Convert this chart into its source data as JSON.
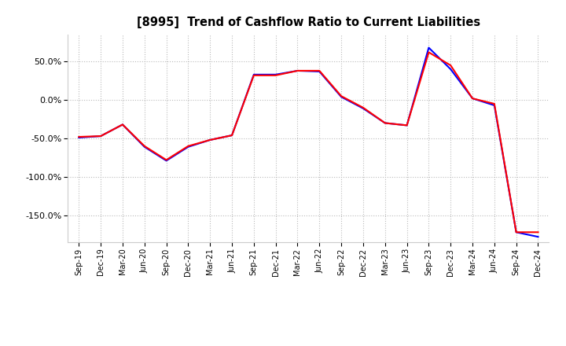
{
  "title": "[8995]  Trend of Cashflow Ratio to Current Liabilities",
  "x_labels": [
    "Sep-19",
    "Dec-19",
    "Mar-20",
    "Jun-20",
    "Sep-20",
    "Dec-20",
    "Mar-21",
    "Jun-21",
    "Sep-21",
    "Dec-21",
    "Mar-22",
    "Jun-22",
    "Sep-22",
    "Dec-22",
    "Mar-23",
    "Jun-23",
    "Sep-23",
    "Dec-23",
    "Mar-24",
    "Jun-24",
    "Sep-24",
    "Dec-24"
  ],
  "operating_cf": [
    -0.48,
    -0.47,
    -0.32,
    -0.6,
    -0.78,
    -0.6,
    -0.52,
    -0.46,
    0.32,
    0.32,
    0.38,
    0.38,
    0.05,
    -0.1,
    -0.3,
    -0.33,
    0.62,
    0.45,
    0.02,
    -0.05,
    -1.72,
    -1.72
  ],
  "free_cf": [
    -0.49,
    -0.47,
    -0.32,
    -0.61,
    -0.79,
    -0.61,
    -0.52,
    -0.46,
    0.33,
    0.33,
    0.38,
    0.37,
    0.04,
    -0.11,
    -0.3,
    -0.33,
    0.68,
    0.4,
    0.02,
    -0.07,
    -1.72,
    -1.78
  ],
  "operating_color": "#ff0000",
  "free_color": "#0000ff",
  "background_color": "#ffffff",
  "ylim": [
    -1.85,
    0.85
  ],
  "yticks": [
    -1.5,
    -1.0,
    -0.5,
    0.0,
    0.5
  ],
  "grid_color": "#bbbbbb",
  "line_width": 1.5
}
